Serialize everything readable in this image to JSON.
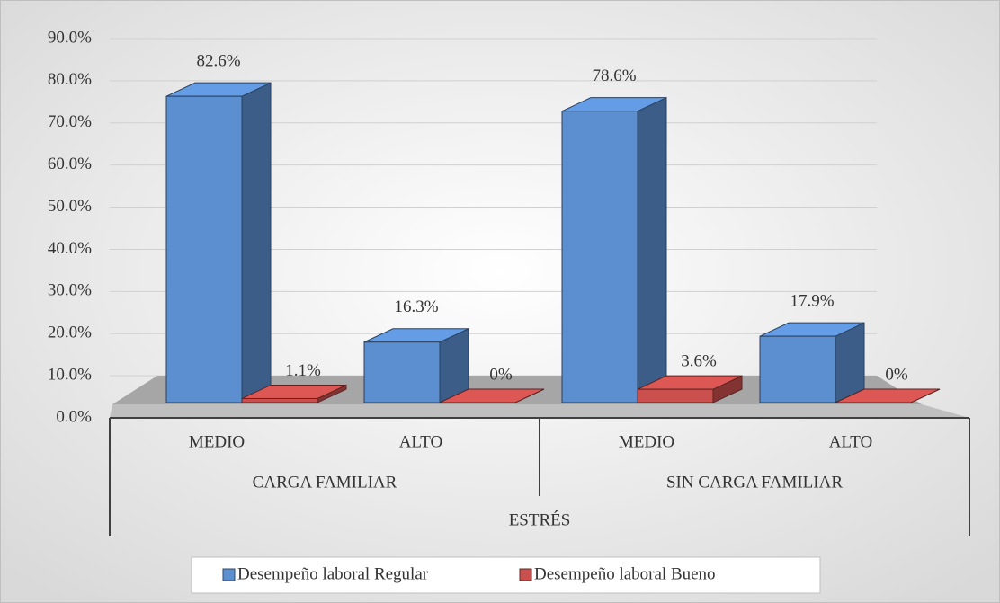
{
  "chart_data": {
    "type": "bar3d",
    "x_label": "ESTRÉS",
    "groups": [
      {
        "name": "CARGA FAMILIAR",
        "categories": [
          "MEDIO",
          "ALTO"
        ]
      },
      {
        "name": "SIN CARGA FAMILIAR",
        "categories": [
          "MEDIO",
          "ALTO"
        ]
      }
    ],
    "series": [
      {
        "name": "Desempeño laboral  Regular",
        "color": "#5b8fd0",
        "values": [
          82.6,
          16.3,
          78.6,
          17.9
        ],
        "value_labels": [
          "82.6%",
          "16.3%",
          "78.6%",
          "17.9%"
        ]
      },
      {
        "name": "Desempeño laboral  Bueno",
        "color": "#c9504d",
        "values": [
          1.1,
          0,
          3.6,
          0
        ],
        "value_labels": [
          "1.1%",
          "0%",
          "3.6%",
          "0%"
        ]
      }
    ],
    "ylim": [
      0,
      90
    ],
    "yticks": [
      {
        "value": 0,
        "label": "0.0%"
      },
      {
        "value": 10,
        "label": "10.0%"
      },
      {
        "value": 20,
        "label": "20.0%"
      },
      {
        "value": 30,
        "label": "30.0%"
      },
      {
        "value": 40,
        "label": "40.0%"
      },
      {
        "value": 50,
        "label": "50.0%"
      },
      {
        "value": 60,
        "label": "60.0%"
      },
      {
        "value": 70,
        "label": "70.0%"
      },
      {
        "value": 80,
        "label": "80.0%"
      },
      {
        "value": 90,
        "label": "90.0%"
      }
    ],
    "grid": true,
    "legend": "bottom"
  }
}
